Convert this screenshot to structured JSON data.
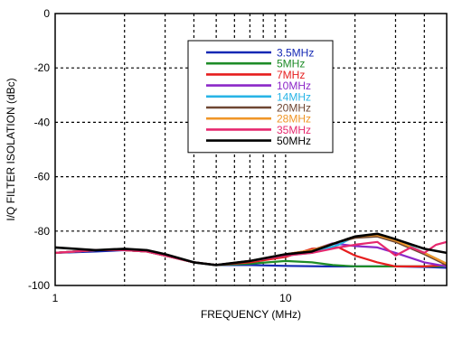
{
  "chart_data": {
    "type": "line",
    "xlabel": "FREQUENCY (MHz)",
    "ylabel": "I/Q FILTER ISOLATION (dBc)",
    "x_scale": "log",
    "xlim": [
      1,
      50
    ],
    "ylim": [
      -100,
      0
    ],
    "y_ticks": [
      0,
      -20,
      -40,
      -60,
      -80,
      -100
    ],
    "x_tick_labels": [
      {
        "value": 1,
        "label": "1"
      },
      {
        "value": 10,
        "label": "10"
      }
    ],
    "grid": true,
    "legend_position": "top-center",
    "series": [
      {
        "name": "3.5MHz",
        "color": "#1428b4",
        "x": [
          1,
          1.5,
          2,
          2.5,
          3,
          4,
          5,
          7,
          10,
          15,
          20,
          30,
          40,
          50
        ],
        "y": [
          -88,
          -87.5,
          -87,
          -87.5,
          -89,
          -91.5,
          -92.5,
          -92.5,
          -92.8,
          -93,
          -93,
          -93,
          -93.2,
          -93.5
        ]
      },
      {
        "name": "5MHz",
        "color": "#1e8c28",
        "x": [
          1,
          1.5,
          2,
          2.5,
          3,
          4,
          5,
          7,
          10,
          13,
          16,
          20,
          30,
          40,
          50
        ],
        "y": [
          -88,
          -87,
          -87,
          -87.5,
          -89,
          -91.5,
          -92.5,
          -92,
          -91,
          -91.5,
          -92.5,
          -93,
          -93,
          -93,
          -93
        ]
      },
      {
        "name": "7MHz",
        "color": "#e61e1e",
        "x": [
          1,
          1.5,
          2,
          2.5,
          3,
          4,
          5,
          7,
          10,
          13,
          17,
          20,
          25,
          30,
          40,
          50
        ],
        "y": [
          -88,
          -87,
          -87,
          -87.5,
          -89,
          -91.5,
          -92.5,
          -91.5,
          -89.5,
          -86.5,
          -86,
          -89,
          -91.5,
          -93,
          -93,
          -92.5
        ]
      },
      {
        "name": "10MHz",
        "color": "#8c28c8",
        "x": [
          1,
          1.5,
          2,
          2.5,
          3,
          4,
          5,
          7,
          10,
          13,
          16,
          20,
          25,
          30,
          40,
          50
        ],
        "y": [
          -88,
          -87,
          -87,
          -87.5,
          -89,
          -91.5,
          -92.5,
          -91,
          -89,
          -87,
          -84.5,
          -85.5,
          -86,
          -88,
          -91.5,
          -93
        ]
      },
      {
        "name": "14MHz",
        "color": "#28b4e6",
        "x": [
          1,
          1.5,
          2,
          2.5,
          3,
          4,
          5,
          7,
          10,
          13,
          17,
          20,
          25,
          30,
          40,
          50
        ],
        "y": [
          -88,
          -87,
          -87,
          -87.5,
          -89,
          -91.5,
          -92.5,
          -91,
          -89,
          -88,
          -85,
          -82,
          -81.5,
          -83,
          -88,
          -92
        ]
      },
      {
        "name": "20MHz",
        "color": "#6e4632",
        "x": [
          1,
          1.5,
          2,
          2.5,
          3,
          4,
          5,
          7,
          10,
          13,
          17,
          20,
          25,
          30,
          40,
          50
        ],
        "y": [
          -88,
          -87,
          -87,
          -87.5,
          -89,
          -91.5,
          -92.5,
          -91,
          -88.5,
          -87,
          -84,
          -82.5,
          -82,
          -84,
          -88.5,
          -92.5
        ]
      },
      {
        "name": "28MHz",
        "color": "#f09628",
        "x": [
          1,
          1.5,
          2,
          2.5,
          3,
          4,
          5,
          7,
          10,
          13,
          17,
          20,
          25,
          30,
          40,
          50
        ],
        "y": [
          -88,
          -87,
          -87,
          -87.5,
          -89,
          -91.5,
          -92.5,
          -91,
          -88.5,
          -87,
          -84,
          -82,
          -81.5,
          -83.5,
          -88,
          -92
        ]
      },
      {
        "name": "35MHz",
        "color": "#e6286e",
        "x": [
          1,
          1.5,
          2,
          2.5,
          3,
          4,
          5,
          7,
          10,
          13,
          17,
          20,
          25,
          30,
          35,
          40,
          45,
          50
        ],
        "y": [
          -88,
          -87,
          -87,
          -87.5,
          -89,
          -91.5,
          -92.5,
          -91,
          -89,
          -88,
          -86,
          -85,
          -84,
          -89,
          -86,
          -88,
          -85,
          -84
        ]
      },
      {
        "name": "50MHz",
        "color": "#000000",
        "x": [
          1,
          1.5,
          2,
          2.5,
          3,
          4,
          5,
          7,
          10,
          13,
          17,
          20,
          25,
          30,
          40,
          50
        ],
        "y": [
          -86,
          -87,
          -86.5,
          -87,
          -88.5,
          -91.5,
          -92.5,
          -91,
          -88.5,
          -87.5,
          -84,
          -82,
          -81,
          -83,
          -86.5,
          -88
        ]
      }
    ]
  }
}
